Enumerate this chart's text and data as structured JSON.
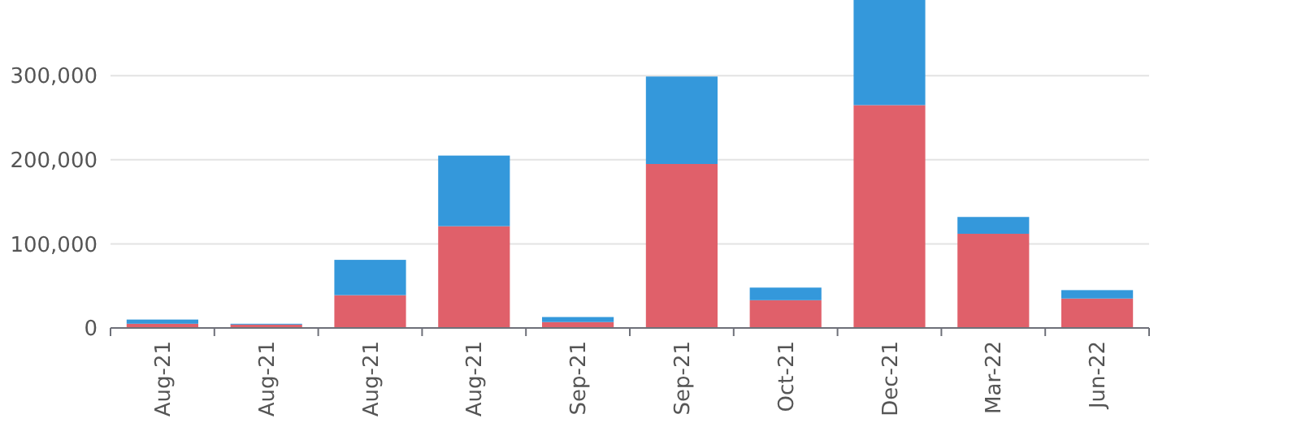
{
  "chart_data": {
    "type": "bar",
    "stacked": true,
    "categories": [
      "Aug-21",
      "Aug-21",
      "Aug-21",
      "Aug-21",
      "Sep-21",
      "Sep-21",
      "Oct-21",
      "Dec-21",
      "Mar-22",
      "Jun-22"
    ],
    "series": [
      {
        "color": "#e0606a",
        "values": [
          5000,
          4000,
          39000,
          121000,
          7000,
          195000,
          33000,
          265000,
          112000,
          35000
        ]
      },
      {
        "color": "#3498db",
        "values": [
          5000,
          1000,
          42000,
          84000,
          6000,
          104000,
          15000,
          125000,
          20000,
          10000
        ]
      }
    ],
    "ylim": [
      0,
      390000
    ],
    "yticks": [
      {
        "value": 0,
        "label": "0"
      },
      {
        "value": 100000,
        "label": "100,000"
      },
      {
        "value": 200000,
        "label": "200,000"
      },
      {
        "value": 300000,
        "label": "300,000"
      }
    ],
    "grid": "y"
  }
}
